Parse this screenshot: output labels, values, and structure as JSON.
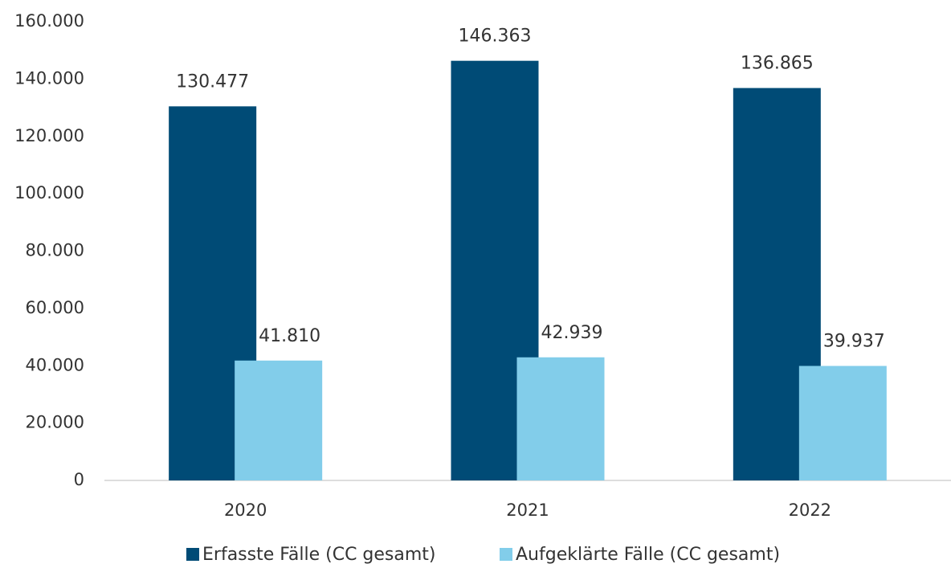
{
  "chart_data": {
    "type": "bar",
    "categories": [
      "2020",
      "2021",
      "2022"
    ],
    "series": [
      {
        "name": "Erfasste Fälle (CC gesamt)",
        "color": "#004b76",
        "values": [
          130477,
          146363,
          136865
        ],
        "value_labels": [
          "130.477",
          "146.363",
          "136.865"
        ]
      },
      {
        "name": "Aufgeklärte Fälle (CC gesamt)",
        "color": "#82cdea",
        "values": [
          41810,
          42939,
          39937
        ],
        "value_labels": [
          "41.810",
          "42.939",
          "39.937"
        ]
      }
    ],
    "ylim": [
      0,
      160000
    ],
    "yticks": [
      0,
      {
        "value": 20000,
        "label": "20.000"
      },
      {
        "value": 40000,
        "label": "40.000"
      },
      {
        "value": 60000,
        "label": "60.000"
      },
      {
        "value": 80000,
        "label": "80.000"
      },
      {
        "value": 100000,
        "label": "100.000"
      },
      {
        "value": 120000,
        "label": "120.000"
      },
      {
        "value": 140000,
        "label": "140.000"
      },
      {
        "value": 160000,
        "label": "160.000"
      }
    ],
    "grid": false,
    "legend": "bottom"
  }
}
